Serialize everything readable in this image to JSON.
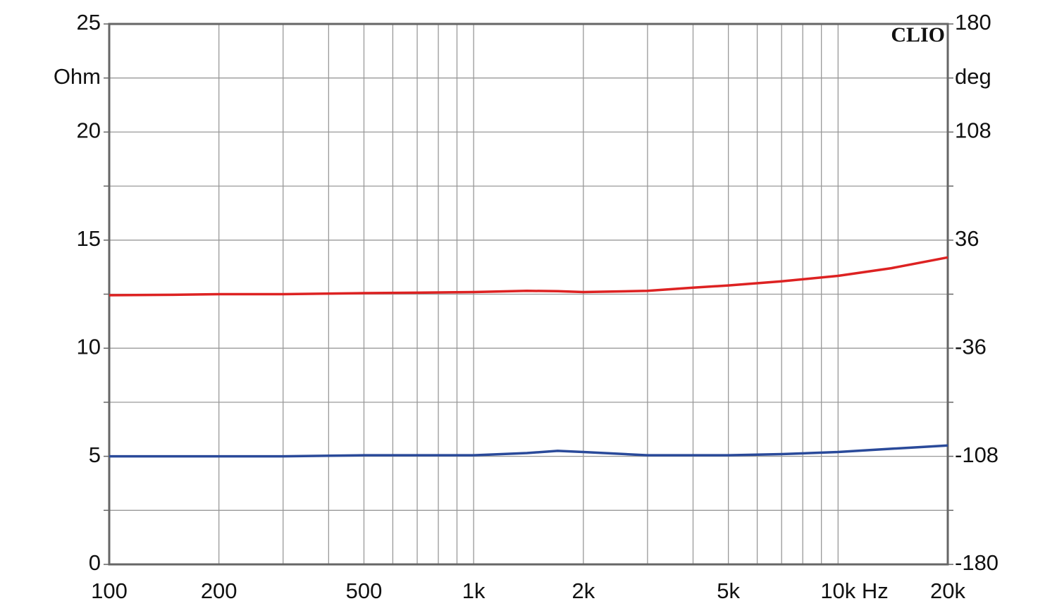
{
  "chart_data": {
    "type": "line",
    "watermark": "CLIO",
    "y_label": "Ohm",
    "y2_label": "deg",
    "log_x": true,
    "grid": true,
    "x": [
      100,
      150,
      200,
      300,
      500,
      700,
      1000,
      1400,
      1700,
      2000,
      3000,
      4000,
      5000,
      7000,
      10000,
      14000,
      20000
    ],
    "series": [
      {
        "color": "#2a4a9a",
        "values": [
          5.0,
          5.0,
          5.0,
          5.0,
          5.05,
          5.05,
          5.05,
          5.15,
          5.25,
          5.2,
          5.05,
          5.05,
          5.05,
          5.1,
          5.2,
          5.35,
          5.5
        ]
      },
      {
        "color": "#dd2222",
        "axis": "y2",
        "values": [
          -0.7,
          -0.4,
          0,
          0,
          0.7,
          1,
          1.4,
          2.2,
          2,
          1.4,
          2.2,
          4.3,
          5.8,
          8.6,
          12.2,
          17.3,
          24.5
        ]
      }
    ],
    "xlim": [
      100,
      20000
    ],
    "xticks": [
      100,
      200,
      500,
      {
        "value": 1000,
        "label": "1k"
      },
      {
        "value": 2000,
        "label": "2k"
      },
      {
        "value": 5000,
        "label": "5k"
      },
      {
        "value": 10000,
        "label": "10k Hz"
      },
      {
        "value": 20000,
        "label": "20k"
      }
    ],
    "x_minor_grid": [
      300,
      400,
      600,
      700,
      800,
      900,
      3000,
      4000,
      6000,
      7000,
      8000,
      9000
    ],
    "ylim": [
      0,
      25
    ],
    "yticks": [
      0,
      5,
      10,
      15,
      20,
      25
    ],
    "y_minor_grid": [
      2.5,
      7.5,
      12.5,
      17.5,
      22.5
    ],
    "y2lim": [
      -180,
      180
    ],
    "y2ticks": [
      -180,
      -108,
      -36,
      36,
      108,
      180
    ]
  }
}
